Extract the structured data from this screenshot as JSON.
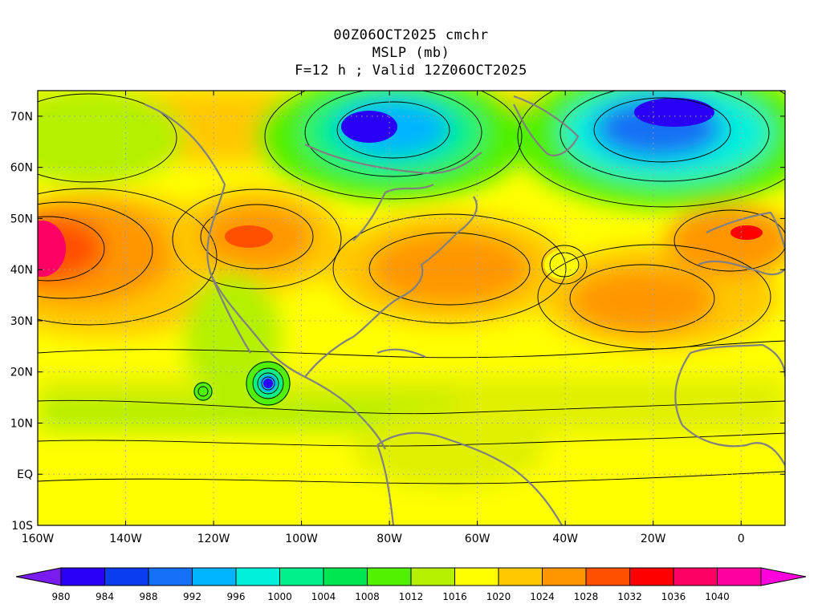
{
  "title": {
    "line1": "00Z06OCT2025 cmchr",
    "line2": "MSLP (mb)",
    "line3": "F=12 h ; Valid 12Z06OCT2025"
  },
  "map": {
    "lat_labels": [
      "70N",
      "60N",
      "50N",
      "40N",
      "30N",
      "20N",
      "10N",
      "EQ",
      "10S"
    ],
    "lat_values": [
      70,
      60,
      50,
      40,
      30,
      20,
      10,
      0,
      -10
    ],
    "lon_labels": [
      "160W",
      "140W",
      "120W",
      "100W",
      "80W",
      "60W",
      "40W",
      "20W",
      "0"
    ],
    "lon_values": [
      -160,
      -140,
      -120,
      -100,
      -80,
      -60,
      -40,
      -20,
      0
    ],
    "lon_range": [
      -160,
      10
    ],
    "lat_range": [
      -10,
      75
    ],
    "grid": "dotted"
  },
  "colorbar": {
    "labels": [
      "980",
      "984",
      "988",
      "992",
      "996",
      "1000",
      "1004",
      "1008",
      "1012",
      "1016",
      "1020",
      "1024",
      "1028",
      "1032",
      "1036",
      "1040"
    ],
    "colors": [
      "#7a1cf0",
      "#2a00f5",
      "#0a3cf0",
      "#1470f5",
      "#00b4ff",
      "#00f0dc",
      "#00f08c",
      "#00e650",
      "#50f000",
      "#b4f000",
      "#ffff00",
      "#ffc800",
      "#ff9600",
      "#ff5000",
      "#ff0000",
      "#ff0064",
      "#ff00a0",
      "#ff00dc"
    ]
  },
  "chart_data": {
    "type": "heatmap",
    "title": "MSLP (mb)",
    "units": "mb",
    "levels": [
      980,
      984,
      988,
      992,
      996,
      1000,
      1004,
      1008,
      1012,
      1016,
      1020,
      1024,
      1028,
      1032,
      1036,
      1040
    ],
    "features": [
      {
        "label": "low",
        "lon": -107,
        "lat": 17.5,
        "value": 980
      },
      {
        "label": "low",
        "lon": -121,
        "lat": 16,
        "value": 1000
      },
      {
        "label": "low",
        "lon": -86,
        "lat": 68,
        "value": 984
      },
      {
        "label": "low",
        "lon": -18,
        "lat": 67,
        "value": 984
      },
      {
        "label": "low",
        "lon": -40,
        "lat": 41,
        "value": 1012
      },
      {
        "label": "high",
        "lon": -160,
        "lat": 45,
        "value": 1036
      },
      {
        "label": "high",
        "lon": -112,
        "lat": 46,
        "value": 1028
      },
      {
        "label": "high",
        "lon": -80,
        "lat": 40,
        "value": 1024
      },
      {
        "label": "high",
        "lon": -25,
        "lat": 33,
        "value": 1024
      },
      {
        "label": "high",
        "lon": 0,
        "lat": 46,
        "value": 1028
      }
    ]
  }
}
